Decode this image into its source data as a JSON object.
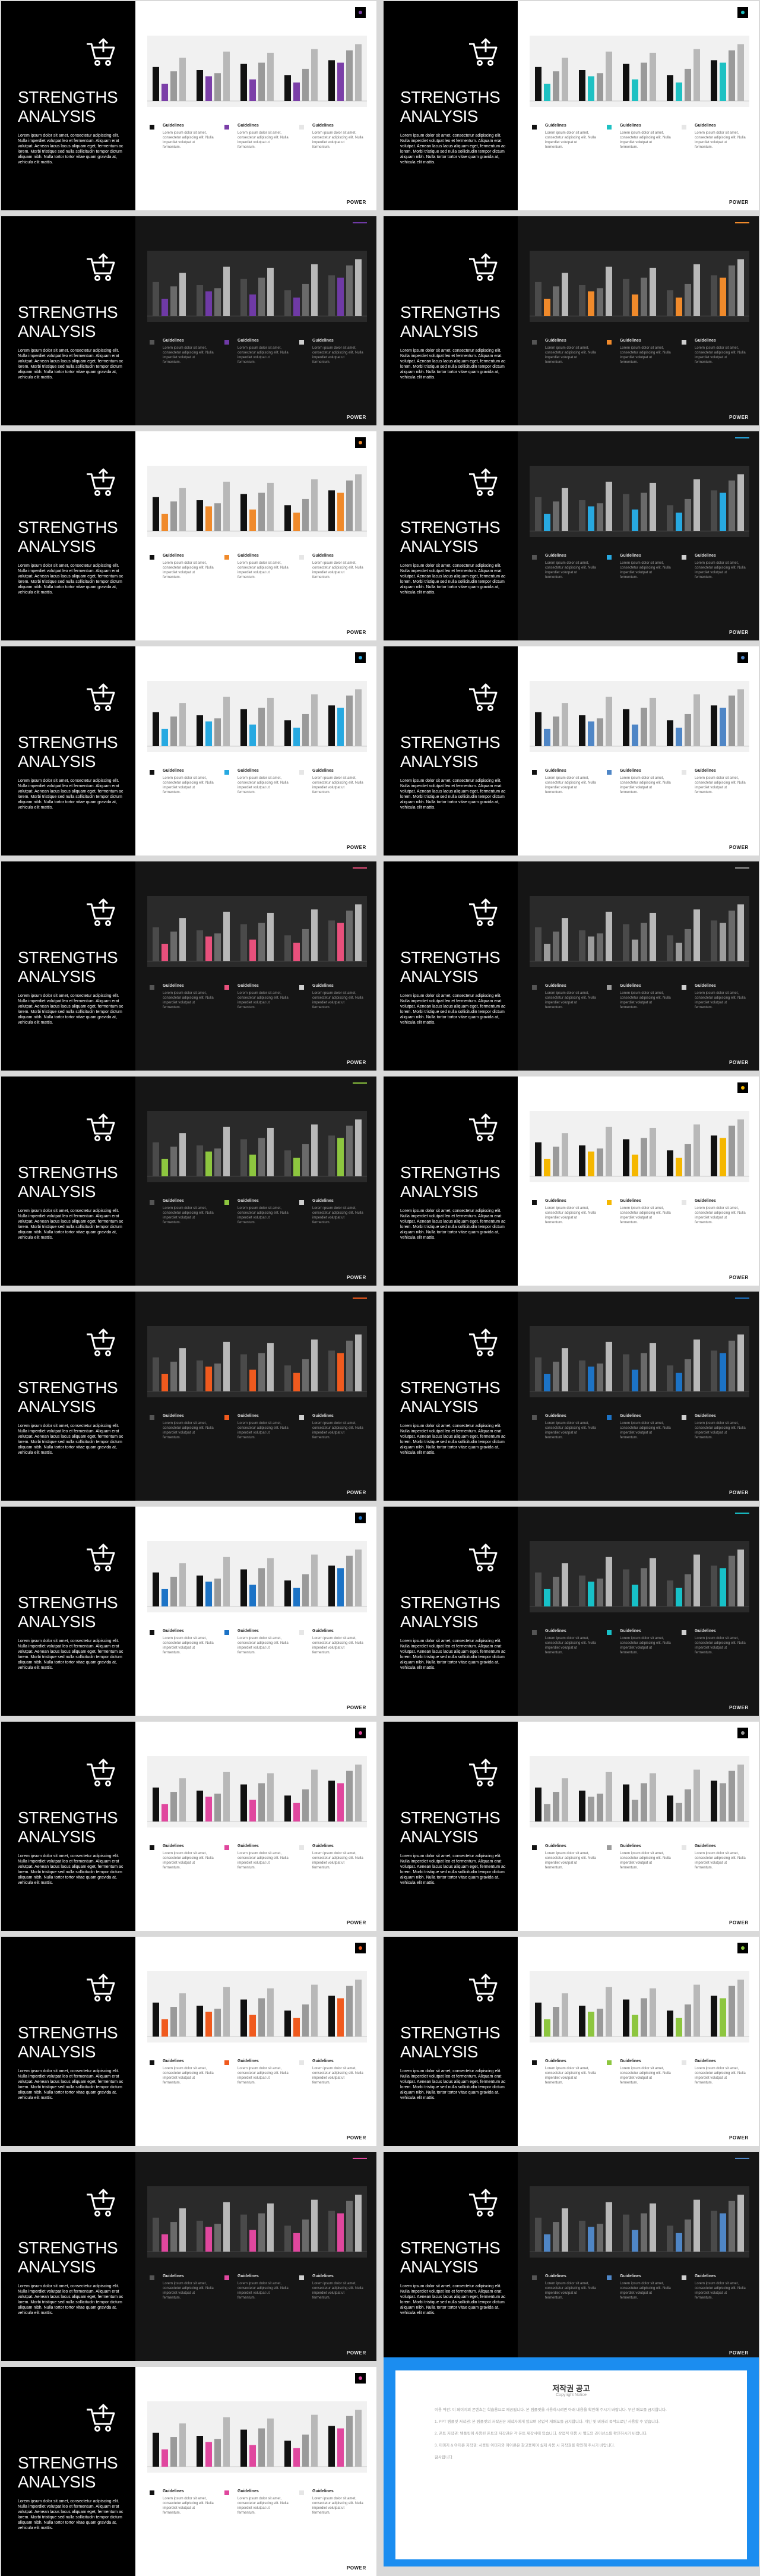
{
  "slide": {
    "title_line1": "STRENGTHS",
    "title_line2": "ANALYSIS",
    "description": "Lorem ipsum dolor sit amet, consectetur adipiscing elit. Nulla imperdiet volutpat leo et fermentum. Aliquam erat volutpat. Aenean lacus lacus aliquam eget, fermentum ac lorem. Morbi tristique sed nulla sollicitudin tempor dictum aliquam nibh. Nulla tortor tortor vitae quam gravida at, vehicula elit mattis.",
    "legend_title": "Guidelines",
    "legend_desc": "Lorem ipsum dolor sit amet, consectetur adipiscing elit. Nulla imperdiet volutpat ut fermentum.",
    "brand": "POWER"
  },
  "chart_data": {
    "type": "bar",
    "categories": [
      "",
      "",
      "",
      "",
      ""
    ],
    "series": [
      {
        "values": [
          55,
          50,
          60,
          42,
          66
        ]
      },
      {
        "values": [
          28,
          40,
          35,
          30,
          62
        ]
      },
      {
        "values": [
          48,
          45,
          62,
          52,
          82
        ]
      },
      {
        "values": [
          70,
          80,
          78,
          84,
          92
        ]
      }
    ],
    "ylim": [
      0,
      100
    ]
  },
  "slides": [
    {
      "theme": "light",
      "accent": "#7b3fa8"
    },
    {
      "theme": "light",
      "accent": "#1ec1c3"
    },
    {
      "theme": "dark",
      "accent": "#6f3aa6"
    },
    {
      "theme": "dark",
      "accent": "#f08a2b"
    },
    {
      "theme": "light",
      "accent": "#f08a2b"
    },
    {
      "theme": "dark",
      "accent": "#27a9e1"
    },
    {
      "theme": "light",
      "accent": "#27a9e1"
    },
    {
      "theme": "light",
      "accent": "#4f86c6"
    },
    {
      "theme": "dark",
      "accent": "#e8507c"
    },
    {
      "theme": "dark",
      "accent": "#9c9c9c"
    },
    {
      "theme": "dark",
      "accent": "#8dc63f"
    },
    {
      "theme": "light",
      "accent": "#f5b700"
    },
    {
      "theme": "dark",
      "accent": "#f05a1e"
    },
    {
      "theme": "dark",
      "accent": "#1c73c6"
    },
    {
      "theme": "light",
      "accent": "#1c73c6"
    },
    {
      "theme": "dark",
      "accent": "#17c1c8"
    },
    {
      "theme": "light",
      "accent": "#e0479e"
    },
    {
      "theme": "light",
      "accent": "#9c9c9c"
    },
    {
      "theme": "light",
      "accent": "#f05a1e"
    },
    {
      "theme": "light",
      "accent": "#8dc63f"
    },
    {
      "theme": "dark",
      "accent": "#e0479e"
    },
    {
      "theme": "dark",
      "accent": "#4f86c6"
    },
    {
      "theme": "light",
      "accent": "#e0479e"
    }
  ],
  "copyright": {
    "title": "저작권 공고",
    "subtitle": "Copyright Notice",
    "p1": "이용 약관: 이 페이지의 콘텐츠는 학습용으로 제공됩니다. 본 템플릿을 사용하시려면 아래 내용을 확인해 주시기 바랍니다. 무단 배포를 금지합니다.",
    "p2": "1. PPT 템플릿 저작권: 본 템플릿의 저작권은 제작자에게 있으며 상업적 재배포를 금지합니다. 개인 및 비영리 목적으로만 사용할 수 있습니다.",
    "p3": "2. 폰트 저작권: 템플릿에 사용된 폰트의 저작권은 각 폰트 제작사에 있습니다. 상업적 이용 시 별도의 라이선스를 확인하시기 바랍니다.",
    "p4": "3. 이미지 & 아이콘 저작권: 사용된 이미지와 아이콘은 참고용이며 실제 사용 시 저작권을 확인해 주시기 바랍니다.",
    "p5": "감사합니다."
  }
}
